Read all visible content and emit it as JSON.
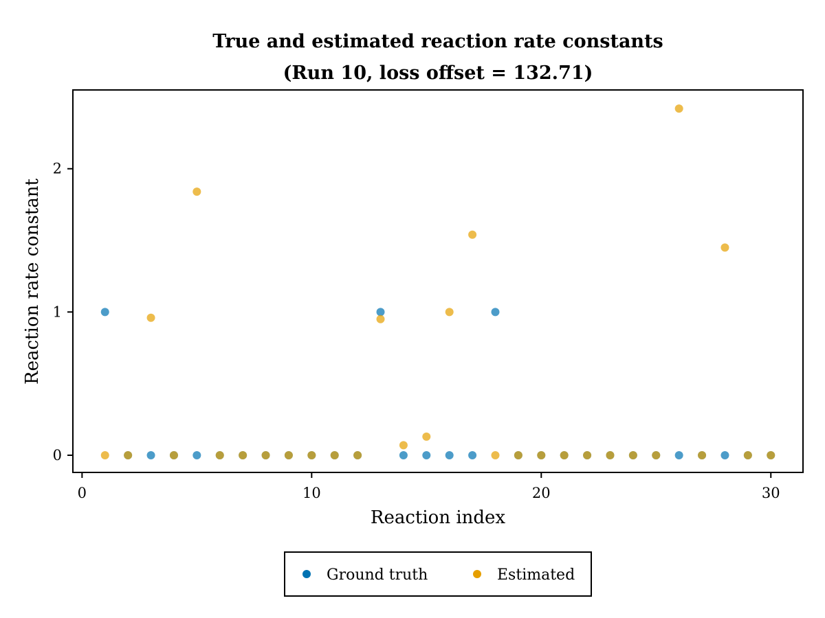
{
  "chart_data": {
    "type": "scatter",
    "title": "True and estimated reaction rate constants",
    "subtitle": "(Run 10, loss offset = 132.71)",
    "xlabel": "Reaction index",
    "ylabel": "Reaction rate constant",
    "xlim": [
      -0.4,
      31.4
    ],
    "ylim": [
      -0.12,
      2.55
    ],
    "xticks": [
      0,
      10,
      20,
      30
    ],
    "yticks": [
      0,
      1,
      2
    ],
    "grid": false,
    "legend_placement": "bottom-center",
    "x": [
      1,
      2,
      3,
      4,
      5,
      6,
      7,
      8,
      9,
      10,
      11,
      12,
      13,
      14,
      15,
      16,
      17,
      18,
      19,
      20,
      21,
      22,
      23,
      24,
      25,
      26,
      27,
      28,
      29,
      30
    ],
    "series": [
      {
        "name": "Ground truth",
        "color": "#0072B2",
        "values": [
          1,
          0,
          0,
          0,
          0,
          0,
          0,
          0,
          0,
          0,
          0,
          0,
          1,
          0,
          0,
          0,
          0,
          1,
          0,
          0,
          0,
          0,
          0,
          0,
          0,
          0,
          0,
          0,
          0,
          0
        ]
      },
      {
        "name": "Estimated",
        "color": "#E69F00",
        "values": [
          0,
          0,
          0.96,
          0,
          1.84,
          0,
          0,
          0,
          0,
          0,
          0,
          0,
          0.95,
          0.07,
          0.13,
          1,
          1.54,
          0,
          0,
          0,
          0,
          0,
          0,
          0,
          0,
          2.42,
          0,
          1.45,
          0,
          0
        ]
      }
    ]
  }
}
